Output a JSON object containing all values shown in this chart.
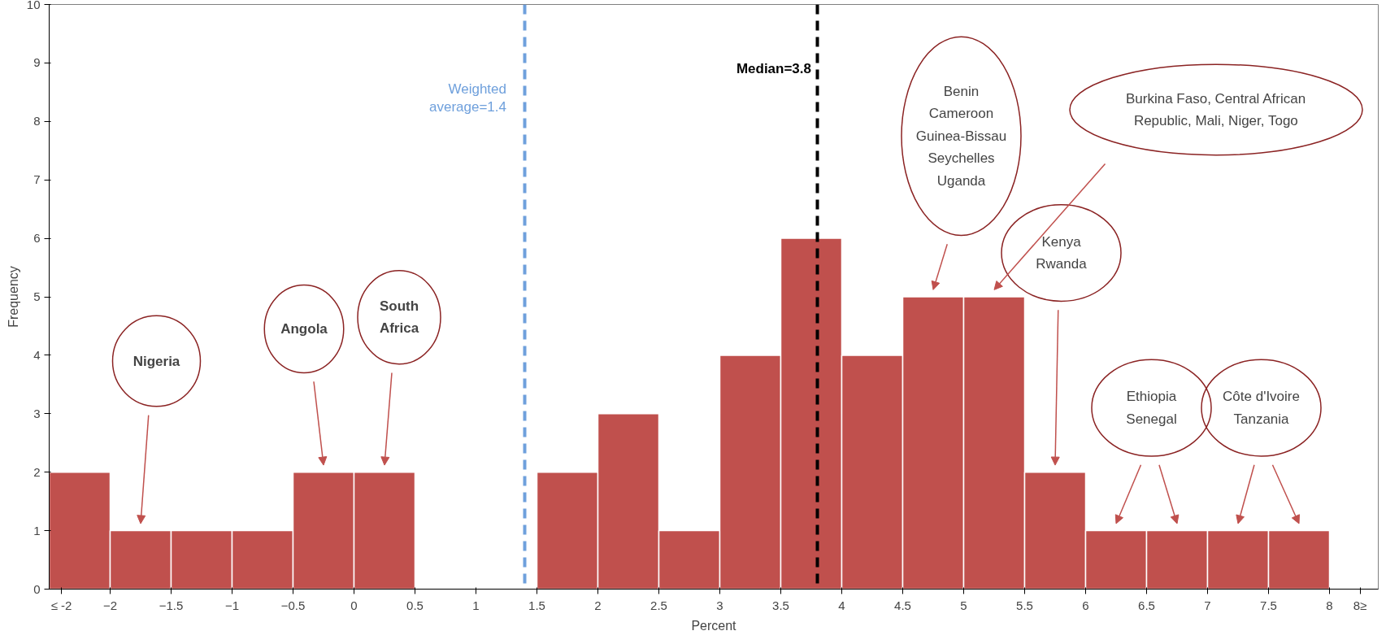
{
  "chart_data": {
    "type": "histogram",
    "xlabel": "Percent",
    "ylabel": "Frequency",
    "bins": [
      -2.5,
      -2,
      -1.5,
      -1,
      -0.5,
      0,
      0.5,
      1,
      1.5,
      2,
      2.5,
      3,
      3.5,
      4,
      4.5,
      5,
      5.5,
      6,
      6.5,
      7,
      7.5,
      8
    ],
    "values": [
      2,
      1,
      1,
      1,
      2,
      2,
      0,
      0,
      2,
      3,
      1,
      4,
      6,
      4,
      5,
      5,
      2,
      1,
      1,
      1,
      1
    ],
    "color": "#c0504d",
    "xlim": [
      -2.5,
      8.4
    ],
    "ylim": [
      0,
      10
    ],
    "xticks": [
      {
        "value": -2.4,
        "label": "≤ -2"
      },
      -2,
      -1.5,
      -1,
      -0.5,
      0,
      0.5,
      1,
      1.5,
      2,
      2.5,
      3,
      3.5,
      4,
      4.5,
      5,
      5.5,
      6,
      6.5,
      7,
      7.5,
      8,
      {
        "value": 8.25,
        "label": "8≥"
      }
    ],
    "yticks": [
      0,
      1,
      2,
      3,
      4,
      5,
      6,
      7,
      8,
      9,
      10
    ],
    "grid": false,
    "ref_lines": [
      {
        "axis": "x",
        "value": 1.4,
        "label": "Weighted\naverage=1.4",
        "color": "#6fa0dc",
        "line_style": "dashed"
      },
      {
        "axis": "x",
        "value": 3.8,
        "label": "Median=3.8",
        "color": "#000000",
        "line_style": "dashed"
      }
    ],
    "annotations": [
      "Nigeria",
      "Angola",
      "South\nAfrica",
      "Benin\nCameroon\nGuinea-Bissau\nSeychelles\nUganda",
      "Burkina Faso, Central African\nRepublic, Mali, Niger, Togo",
      "Kenya\nRwanda",
      "Ethiopia\nSenegal",
      "Côte d'Ivoire\nTanzania"
    ]
  }
}
